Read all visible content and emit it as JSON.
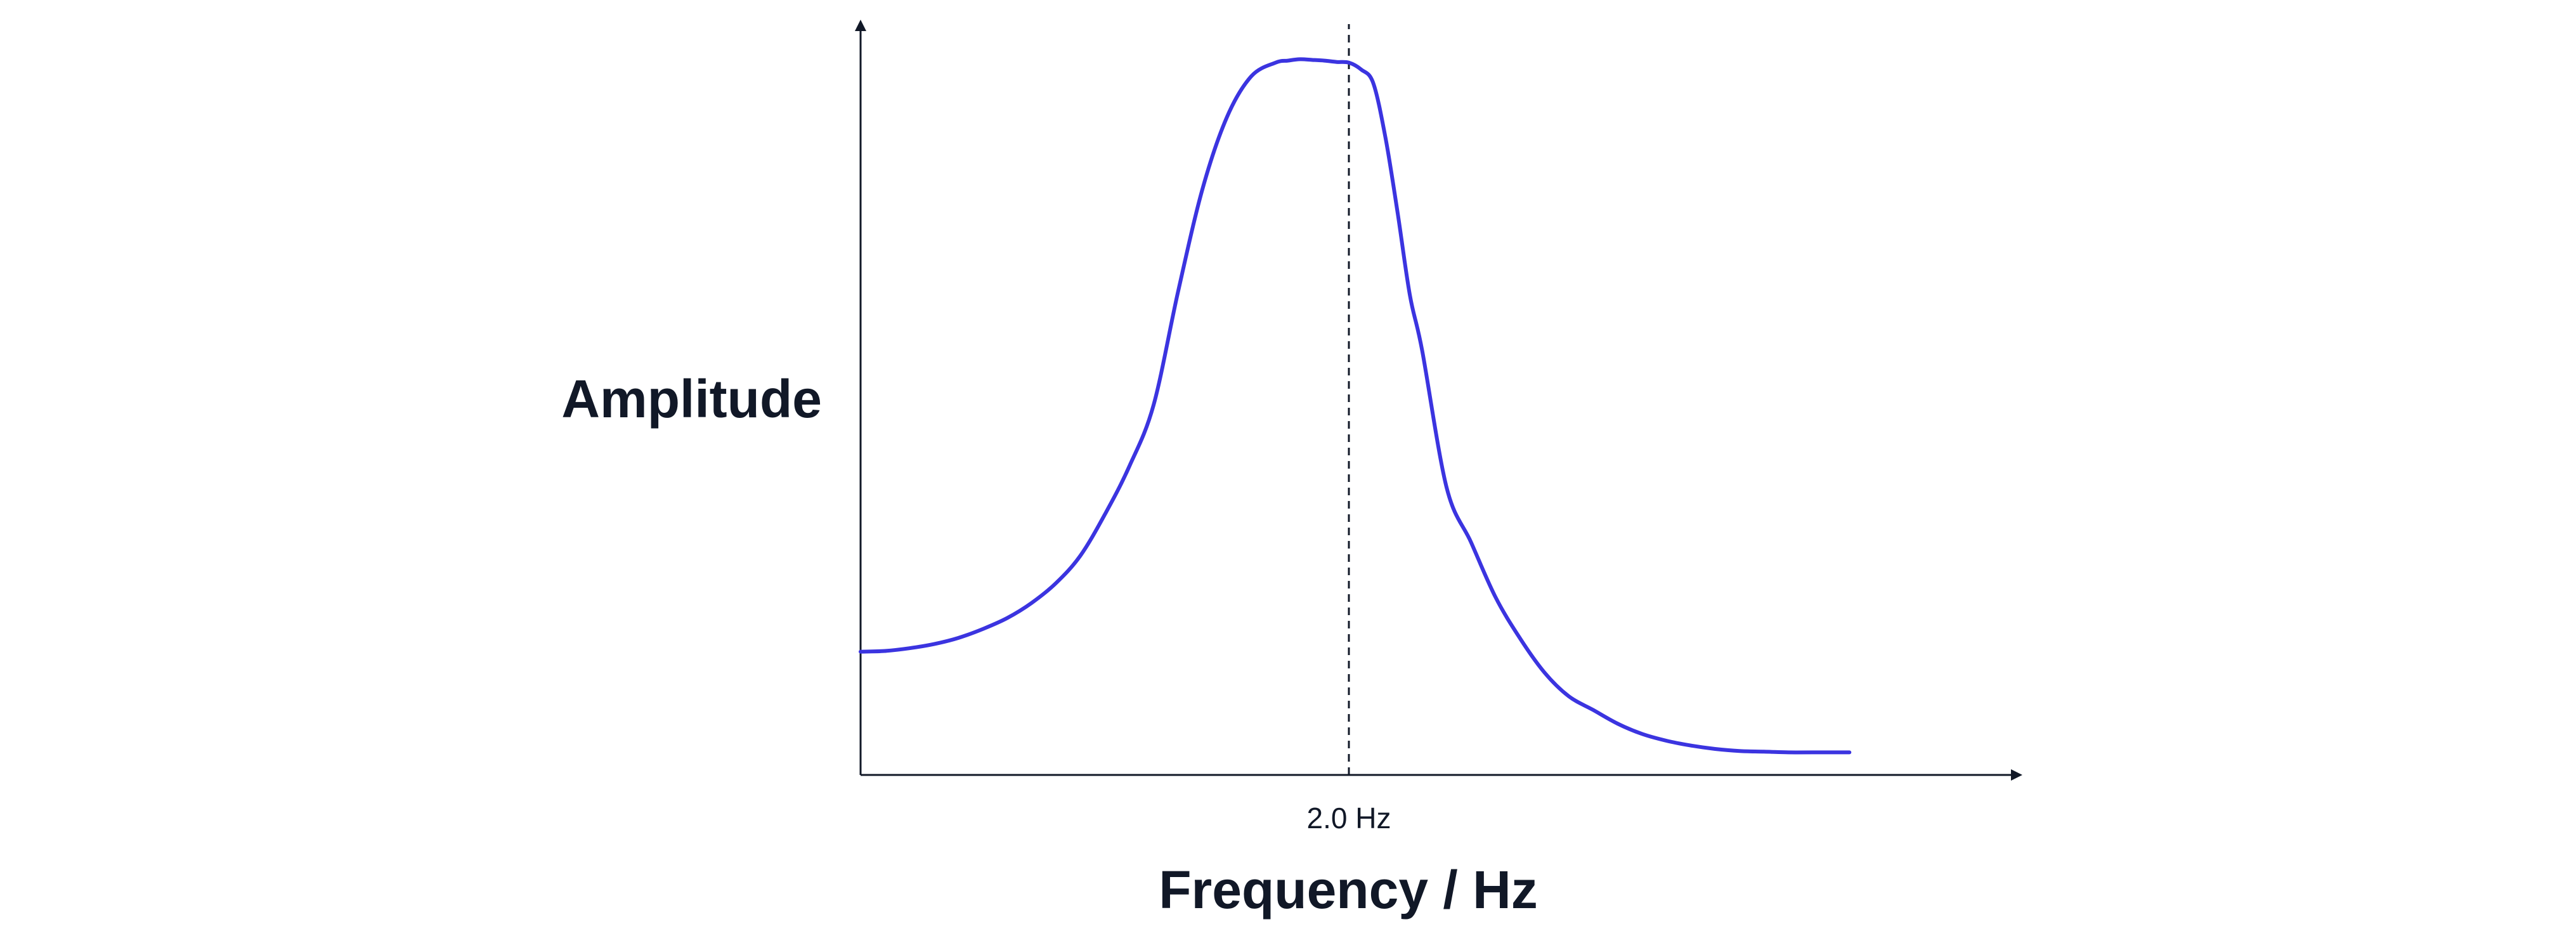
{
  "chart_data": {
    "type": "line",
    "title": "",
    "xlabel": "Frequency / Hz",
    "ylabel": "Amplitude",
    "x_tick_labels": [
      "2.0 Hz"
    ],
    "reference_line": {
      "x": 2.0,
      "label": "2.0 Hz",
      "style": "dashed"
    },
    "xlim": [
      0,
      4.8
    ],
    "ylim": [
      0,
      1.1
    ],
    "grid": false,
    "legend": "none",
    "series": [
      {
        "color": "#3b34e0",
        "x": [
          0.0,
          0.1,
          0.2,
          0.3,
          0.4,
          0.5,
          0.6,
          0.7,
          0.8,
          0.9,
          1.0,
          1.1,
          1.2,
          1.3,
          1.4,
          1.5,
          1.6,
          1.7,
          1.75,
          1.8,
          1.85,
          1.9,
          1.95,
          2.0,
          2.05,
          2.1,
          2.15,
          2.2,
          2.25,
          2.3,
          2.4,
          2.5,
          2.6,
          2.7,
          2.8,
          2.9,
          3.0,
          3.1,
          3.2,
          3.3,
          3.4,
          3.5,
          3.6,
          3.7,
          3.8,
          3.9,
          4.05
        ],
        "y": [
          0.18,
          0.181,
          0.185,
          0.191,
          0.2,
          0.213,
          0.229,
          0.251,
          0.28,
          0.32,
          0.38,
          0.45,
          0.54,
          0.705,
          0.855,
          0.96,
          1.02,
          1.04,
          1.043,
          1.045,
          1.044,
          1.043,
          1.041,
          1.04,
          1.03,
          1.01,
          0.93,
          0.82,
          0.7,
          0.62,
          0.42,
          0.34,
          0.26,
          0.2,
          0.15,
          0.115,
          0.095,
          0.075,
          0.06,
          0.05,
          0.043,
          0.038,
          0.035,
          0.034,
          0.033,
          0.033,
          0.033
        ]
      }
    ]
  }
}
